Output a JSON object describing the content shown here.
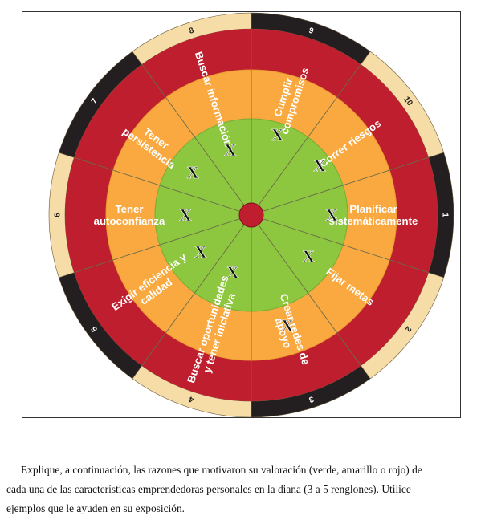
{
  "diagram": {
    "segment_labels": [
      [
        "Cumplir",
        "compromisos"
      ],
      [
        "Correr riesgos"
      ],
      [
        "Planificar",
        "sistemáticamente"
      ],
      [
        "Fijar metas"
      ],
      [
        "Crear redes de",
        "apoyo"
      ],
      [
        "Buscar oportunidades",
        "y tener iniciativa"
      ],
      [
        "Exigir eficiencia y",
        "calidad"
      ],
      [
        "Tener",
        "autoconfianza"
      ],
      [
        "Tener",
        "persistencia"
      ],
      [
        "Buscar información"
      ]
    ],
    "scale_numbers": [
      "1",
      "2",
      "3",
      "4",
      "5",
      "6",
      "7",
      "8",
      "9",
      "10"
    ],
    "marks": [
      "X",
      "X",
      "X",
      "X",
      "X",
      "X",
      "X",
      "X",
      "X",
      "X"
    ],
    "colors": {
      "inner": "#8dc63f",
      "middle": "#f9a940",
      "outer": "#be1e2d",
      "rim_light": "#f6dca7",
      "rim_dark": "#231f20",
      "center": "#be1e2d",
      "divider": "#6b6b4a"
    }
  },
  "instructions": "Explique, a continuación, las razones que motivaron su valoración (verde, amarillo o rojo) de cada una de las características emprendedoras personales en la diana (3 a 5 renglones). Utilice ejemplos que le ayuden en su exposición."
}
